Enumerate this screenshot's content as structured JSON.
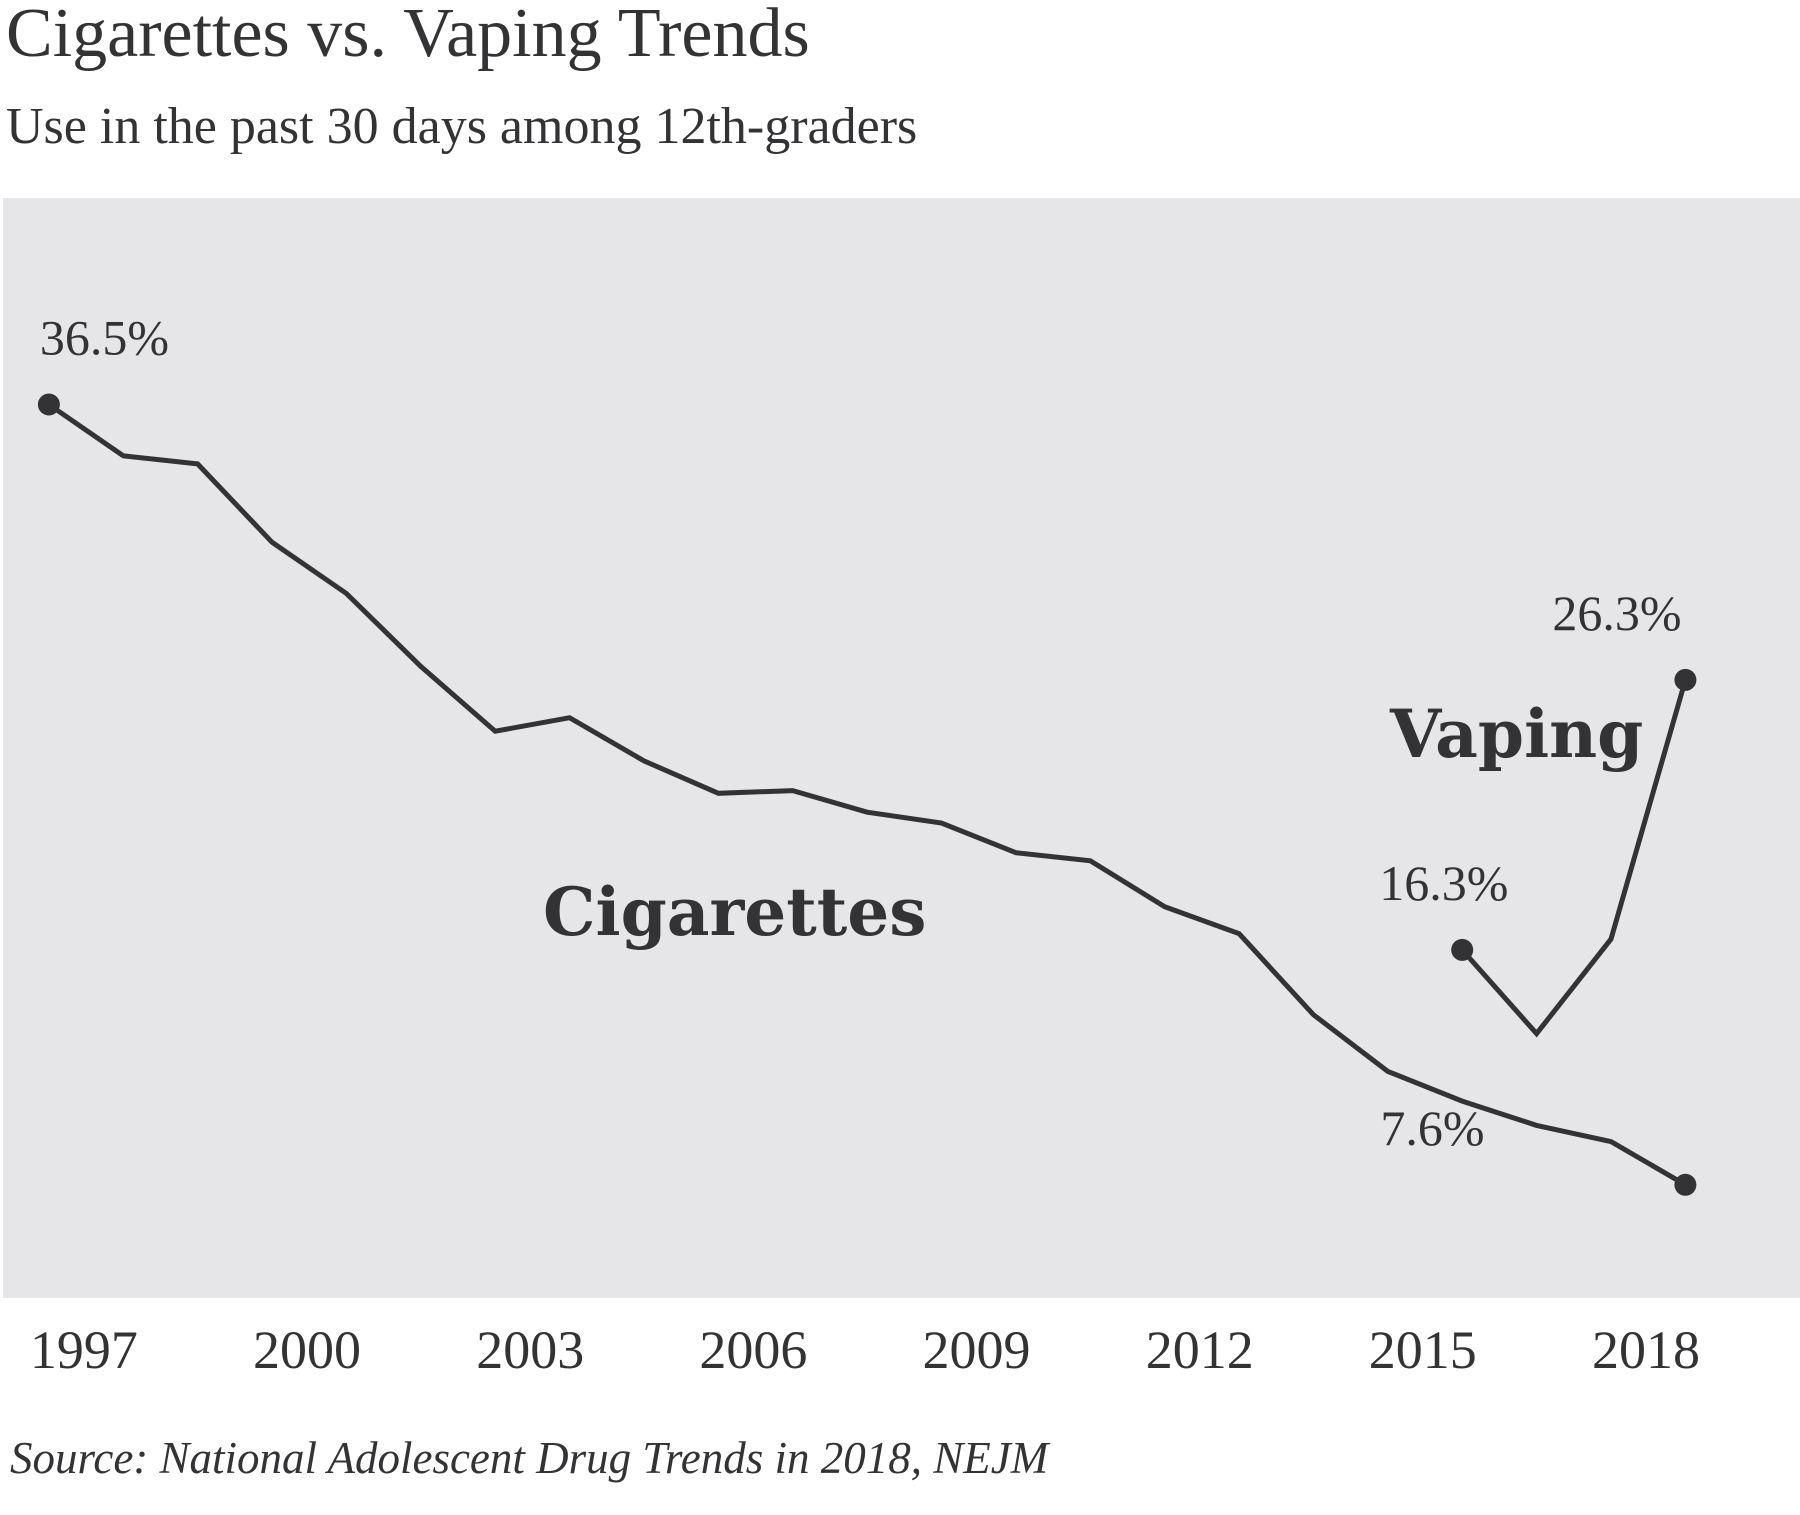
{
  "title": "Cigarettes vs. Vaping Trends",
  "subtitle": "Use in the past 30 days among 12th-graders",
  "source": "Source: National Adolescent Drug Trends in 2018, NEJM",
  "colors": {
    "plot_background": "#e6e6e8",
    "line": "#333336",
    "text": "#333336"
  },
  "chart_data": {
    "type": "line",
    "title": "Cigarettes vs. Vaping Trends",
    "subtitle": "Use in the past 30 days among 12th-graders",
    "xlabel": "",
    "ylabel": "",
    "x_ticks": [
      1997,
      2000,
      2003,
      2006,
      2009,
      2012,
      2015,
      2018
    ],
    "xlim": [
      1996.8,
      2019.6
    ],
    "ylim": [
      0,
      45
    ],
    "grid": false,
    "legend": "none",
    "series": [
      {
        "name": "Cigarettes",
        "x": [
          1997,
          1998,
          1999,
          2000,
          2001,
          2002,
          2003,
          2004,
          2005,
          2006,
          2007,
          2008,
          2009,
          2010,
          2011,
          2012,
          2013,
          2014,
          2015,
          2016,
          2017,
          2018,
          2019
        ],
        "values": [
          36.5,
          34.6,
          34.3,
          31.4,
          29.5,
          26.8,
          24.4,
          24.9,
          23.3,
          22.1,
          22.2,
          21.4,
          21.0,
          19.9,
          19.6,
          17.9,
          16.9,
          13.9,
          11.8,
          10.7,
          9.8,
          9.2,
          7.6
        ]
      },
      {
        "name": "Vaping",
        "x": [
          2016,
          2017,
          2018,
          2019
        ],
        "values": [
          16.3,
          13.2,
          16.7,
          26.3
        ]
      }
    ],
    "annotations": [
      {
        "text": "36.5%",
        "series": "Cigarettes",
        "x": 1997,
        "y": 36.5
      },
      {
        "text": "7.6%",
        "series": "Cigarettes",
        "x": 2019,
        "y": 7.6
      },
      {
        "text": "16.3%",
        "series": "Vaping",
        "x": 2016,
        "y": 16.3
      },
      {
        "text": "26.3%",
        "series": "Vaping",
        "x": 2019,
        "y": 26.3
      }
    ]
  }
}
